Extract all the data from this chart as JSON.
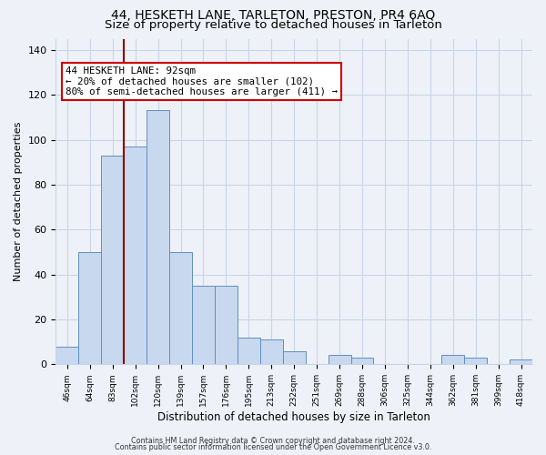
{
  "title": "44, HESKETH LANE, TARLETON, PRESTON, PR4 6AQ",
  "subtitle": "Size of property relative to detached houses in Tarleton",
  "xlabel": "Distribution of detached houses by size in Tarleton",
  "ylabel": "Number of detached properties",
  "bar_color": "#c8d8ef",
  "bar_edge_color": "#5f8fc4",
  "categories": [
    "46sqm",
    "64sqm",
    "83sqm",
    "102sqm",
    "120sqm",
    "139sqm",
    "157sqm",
    "176sqm",
    "195sqm",
    "213sqm",
    "232sqm",
    "251sqm",
    "269sqm",
    "288sqm",
    "306sqm",
    "325sqm",
    "344sqm",
    "362sqm",
    "381sqm",
    "399sqm",
    "418sqm"
  ],
  "values": [
    8,
    50,
    93,
    97,
    113,
    50,
    35,
    35,
    12,
    11,
    6,
    0,
    4,
    3,
    0,
    0,
    0,
    4,
    3,
    0,
    2
  ],
  "ylim": [
    0,
    145
  ],
  "yticks": [
    0,
    20,
    40,
    60,
    80,
    100,
    120,
    140
  ],
  "vline_x_idx": 3,
  "vline_color": "#8B0000",
  "annotation_title": "44 HESKETH LANE: 92sqm",
  "annotation_line1": "← 20% of detached houses are smaller (102)",
  "annotation_line2": "80% of semi-detached houses are larger (411) →",
  "annotation_box_color": "#ffffff",
  "annotation_box_edge": "#cc0000",
  "bg_color": "#eef2f8",
  "footer1": "Contains HM Land Registry data © Crown copyright and database right 2024.",
  "footer2": "Contains public sector information licensed under the Open Government Licence v3.0.",
  "title_fontsize": 10,
  "subtitle_fontsize": 9.5,
  "grid_color": "#c8d4e8"
}
